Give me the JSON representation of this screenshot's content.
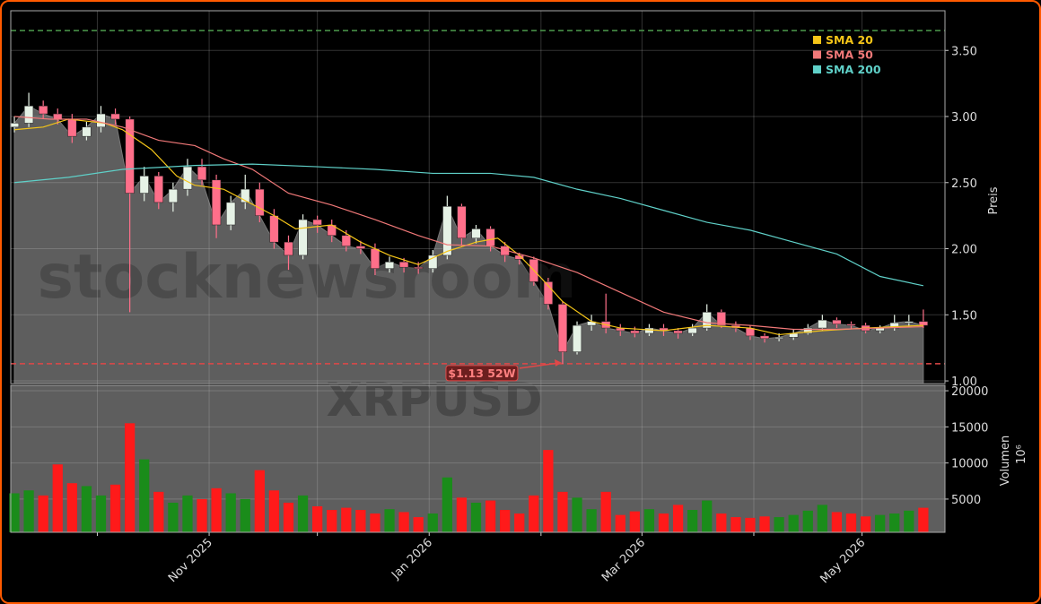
{
  "chart_data": [
    {
      "type": "candlestick",
      "x": [
        0,
        4,
        8,
        12,
        16,
        20,
        24,
        28,
        32,
        36,
        40,
        44,
        48,
        52,
        56,
        60,
        64,
        68,
        72,
        76,
        80,
        84,
        88,
        92,
        96,
        100,
        104,
        108,
        112,
        116,
        120,
        124,
        128,
        132,
        136,
        140,
        144,
        148,
        152,
        156,
        160,
        164,
        168,
        172,
        176,
        180,
        184,
        188,
        192,
        196,
        200,
        204,
        208,
        212,
        216,
        220,
        224,
        228,
        232,
        236,
        240,
        244,
        248,
        252
      ],
      "open": [
        2.92,
        2.95,
        3.08,
        3.02,
        2.98,
        2.85,
        2.92,
        3.02,
        2.98,
        2.42,
        2.55,
        2.35,
        2.45,
        2.62,
        2.52,
        2.18,
        2.35,
        2.45,
        2.25,
        2.05,
        1.95,
        2.22,
        2.18,
        2.1,
        2.02,
        2.0,
        1.85,
        1.9,
        1.86,
        1.85,
        1.95,
        2.32,
        2.08,
        2.15,
        2.02,
        1.95,
        1.92,
        1.75,
        1.58,
        1.22,
        1.42,
        1.45,
        1.4,
        1.38,
        1.36,
        1.4,
        1.38,
        1.36,
        1.4,
        1.52,
        1.42,
        1.4,
        1.34,
        1.32,
        1.33,
        1.36,
        1.4,
        1.46,
        1.43,
        1.42,
        1.38,
        1.4,
        1.44,
        1.45
      ],
      "high": [
        3.0,
        3.18,
        3.12,
        3.06,
        3.02,
        2.96,
        3.08,
        3.06,
        3.0,
        2.62,
        2.58,
        2.5,
        2.68,
        2.68,
        2.56,
        2.4,
        2.56,
        2.5,
        2.3,
        2.1,
        2.26,
        2.25,
        2.22,
        2.14,
        2.06,
        2.04,
        1.94,
        1.93,
        1.9,
        1.99,
        2.4,
        2.34,
        2.18,
        2.17,
        2.05,
        1.97,
        1.94,
        1.78,
        1.6,
        1.45,
        1.5,
        1.66,
        1.43,
        1.41,
        1.43,
        1.43,
        1.4,
        1.43,
        1.58,
        1.54,
        1.45,
        1.42,
        1.36,
        1.36,
        1.39,
        1.43,
        1.5,
        1.48,
        1.45,
        1.44,
        1.42,
        1.5,
        1.5,
        1.54
      ],
      "low": [
        2.88,
        2.92,
        2.98,
        2.94,
        2.8,
        2.82,
        2.88,
        2.94,
        1.52,
        2.36,
        2.3,
        2.28,
        2.4,
        2.48,
        2.08,
        2.14,
        2.3,
        2.2,
        2.0,
        1.84,
        1.92,
        2.12,
        2.05,
        1.98,
        1.96,
        1.8,
        1.82,
        1.82,
        1.81,
        1.82,
        1.92,
        2.02,
        2.04,
        1.98,
        1.9,
        1.88,
        1.72,
        1.54,
        1.13,
        1.2,
        1.38,
        1.36,
        1.34,
        1.33,
        1.34,
        1.34,
        1.32,
        1.34,
        1.38,
        1.4,
        1.37,
        1.31,
        1.29,
        1.3,
        1.31,
        1.35,
        1.38,
        1.4,
        1.39,
        1.36,
        1.36,
        1.38,
        1.41,
        1.4
      ],
      "close": [
        2.95,
        3.08,
        3.02,
        2.98,
        2.85,
        2.92,
        3.02,
        2.98,
        2.42,
        2.55,
        2.35,
        2.45,
        2.62,
        2.52,
        2.18,
        2.35,
        2.45,
        2.25,
        2.05,
        1.95,
        2.22,
        2.18,
        2.1,
        2.02,
        2.0,
        1.85,
        1.9,
        1.86,
        1.85,
        1.95,
        2.32,
        2.08,
        2.15,
        2.02,
        1.95,
        1.92,
        1.75,
        1.58,
        1.22,
        1.42,
        1.45,
        1.4,
        1.38,
        1.36,
        1.4,
        1.38,
        1.36,
        1.4,
        1.52,
        1.42,
        1.4,
        1.34,
        1.32,
        1.33,
        1.36,
        1.4,
        1.46,
        1.43,
        1.42,
        1.38,
        1.4,
        1.44,
        1.45,
        1.42
      ],
      "up_color": "#e6f2e6",
      "down_color": "#ff6f8a",
      "area_color": "#5e5e5e",
      "series": [
        {
          "name": "SMA 20",
          "color": "#f5c518",
          "x": [
            0,
            8,
            15,
            25,
            30,
            38,
            45,
            50,
            58,
            65,
            72,
            78,
            88,
            96,
            104,
            112,
            120,
            128,
            134,
            140,
            146,
            152,
            160,
            168,
            180,
            192,
            204,
            212,
            224,
            236,
            252
          ],
          "values": [
            2.9,
            2.92,
            2.98,
            2.95,
            2.9,
            2.75,
            2.55,
            2.48,
            2.45,
            2.35,
            2.25,
            2.15,
            2.18,
            2.05,
            1.95,
            1.88,
            1.98,
            2.05,
            2.08,
            1.95,
            1.78,
            1.6,
            1.45,
            1.4,
            1.38,
            1.42,
            1.4,
            1.35,
            1.38,
            1.4,
            1.42
          ]
        },
        {
          "name": "SMA 50",
          "color": "#f07878",
          "x": [
            0,
            10,
            20,
            30,
            40,
            50,
            58,
            66,
            76,
            88,
            100,
            112,
            120,
            132,
            144,
            156,
            168,
            180,
            192,
            204,
            216,
            228,
            240,
            252
          ],
          "values": [
            3.0,
            2.98,
            2.98,
            2.92,
            2.82,
            2.78,
            2.68,
            2.6,
            2.42,
            2.33,
            2.22,
            2.1,
            2.03,
            2.02,
            1.93,
            1.82,
            1.67,
            1.52,
            1.44,
            1.42,
            1.39,
            1.39,
            1.4,
            1.41
          ]
        },
        {
          "name": "SMA 200",
          "color": "#5fd0c8",
          "x": [
            0,
            15,
            30,
            50,
            66,
            84,
            100,
            116,
            132,
            144,
            156,
            168,
            180,
            192,
            204,
            216,
            228,
            240,
            252
          ],
          "values": [
            2.5,
            2.54,
            2.6,
            2.63,
            2.64,
            2.62,
            2.6,
            2.57,
            2.57,
            2.54,
            2.45,
            2.38,
            2.29,
            2.2,
            2.14,
            2.05,
            1.96,
            1.79,
            1.72
          ]
        }
      ],
      "legend": "upper right",
      "ylabel": "Preis",
      "xlim": [
        -1,
        258
      ],
      "ylim": [
        0.98,
        3.8
      ],
      "yticks": [
        {
          "value": 1,
          "label": "1.00"
        },
        {
          "value": 1.5,
          "label": "1.50"
        },
        {
          "value": 2,
          "label": "2.00"
        },
        {
          "value": 2.5,
          "label": "2.50"
        },
        {
          "value": 3,
          "label": "3.00"
        },
        {
          "value": 3.5,
          "label": "3.50"
        }
      ],
      "grid": true,
      "reference_lines": [
        {
          "value": 3.65,
          "color": "#4c9a4c"
        },
        {
          "value": 1.13,
          "color": "#e04848"
        }
      ],
      "annotation": {
        "text": "$1.13 52W",
        "x": 152,
        "y": 1.13
      },
      "watermark": "stocknewsroom"
    },
    {
      "type": "bar",
      "x": [
        0,
        4,
        8,
        12,
        16,
        20,
        24,
        28,
        32,
        36,
        40,
        44,
        48,
        52,
        56,
        60,
        64,
        68,
        72,
        76,
        80,
        84,
        88,
        92,
        96,
        100,
        104,
        108,
        112,
        116,
        120,
        124,
        128,
        132,
        136,
        140,
        144,
        148,
        152,
        156,
        160,
        164,
        168,
        172,
        176,
        180,
        184,
        188,
        192,
        196,
        200,
        204,
        208,
        212,
        216,
        220,
        224,
        228,
        232,
        236,
        240,
        244,
        248,
        252
      ],
      "values": [
        5800,
        6200,
        5500,
        9800,
        7200,
        6800,
        5500,
        7000,
        15500,
        10500,
        6000,
        4500,
        5500,
        5000,
        6500,
        5800,
        5000,
        9000,
        6200,
        4500,
        5500,
        4000,
        3500,
        3800,
        3500,
        3000,
        3600,
        3200,
        2500,
        3000,
        8000,
        5200,
        4500,
        4800,
        3500,
        3000,
        5500,
        11800,
        6000,
        5200,
        3600,
        6000,
        2800,
        3300,
        3600,
        3000,
        4200,
        3500,
        4800,
        3000,
        2500,
        2400,
        2600,
        2500,
        2800,
        3400,
        4200,
        3200,
        3000,
        2600,
        2800,
        3000,
        3400,
        3800
      ],
      "up_color": "#1a8c1a",
      "down_color": "#ff1a1a",
      "area_color": "#5e5e5e",
      "ylabel": "Volumen",
      "offset_label": "10⁶",
      "xlim": [
        -1,
        258
      ],
      "ylim": [
        400,
        20750
      ],
      "yticks": [
        5000,
        10000,
        15000,
        20000
      ],
      "xticks": [
        {
          "value": 23,
          "label": null
        },
        {
          "value": 54,
          "label": "Nov 2025"
        },
        {
          "value": 84,
          "label": null
        },
        {
          "value": 115,
          "label": "Jan 2026"
        },
        {
          "value": 146,
          "label": null
        },
        {
          "value": 174,
          "label": "Mar 2026"
        },
        {
          "value": 205,
          "label": null
        },
        {
          "value": 235,
          "label": "May 2026"
        }
      ],
      "grid": true,
      "watermark": "XRPUSD"
    }
  ]
}
